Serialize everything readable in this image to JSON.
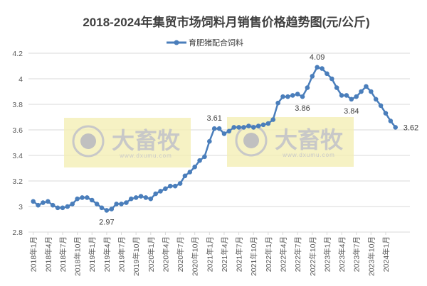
{
  "chart_data": {
    "type": "line",
    "title": "2018-2024年集贸市场饲料月销售价格趋势图(元/公斤)",
    "xlabel": "",
    "ylabel": "",
    "ylim": [
      2.8,
      4.2
    ],
    "yticks": [
      2.8,
      3,
      3.2,
      3.4,
      3.6,
      3.8,
      4,
      4.2
    ],
    "ytick_labels": [
      "2.8",
      "3",
      "3.2",
      "3.4",
      "3.6",
      "3.8",
      "4",
      "4.2"
    ],
    "grid": "horizontal",
    "legend": "top",
    "x": [
      "2018年1月",
      "2018年2月",
      "2018年3月",
      "2018年4月",
      "2018年5月",
      "2018年6月",
      "2018年7月",
      "2018年8月",
      "2018年9月",
      "2018年10月",
      "2018年11月",
      "2018年12月",
      "2019年1月",
      "2019年2月",
      "2019年3月",
      "2019年4月",
      "2019年5月",
      "2019年6月",
      "2019年7月",
      "2019年8月",
      "2019年9月",
      "2019年10月",
      "2019年11月",
      "2019年12月",
      "2020年1月",
      "2020年2月",
      "2020年3月",
      "2020年4月",
      "2020年5月",
      "2020年6月",
      "2020年7月",
      "2020年8月",
      "2020年9月",
      "2020年10月",
      "2020年11月",
      "2020年12月",
      "2021年1月",
      "2021年2月",
      "2021年3月",
      "2021年4月",
      "2021年5月",
      "2021年6月",
      "2021年7月",
      "2021年8月",
      "2021年9月",
      "2021年10月",
      "2021年11月",
      "2021年12月",
      "2022年1月",
      "2022年2月",
      "2022年3月",
      "2022年4月",
      "2022年5月",
      "2022年6月",
      "2022年7月",
      "2022年8月",
      "2022年9月",
      "2022年10月",
      "2022年11月",
      "2022年12月",
      "2023年1月",
      "2023年2月",
      "2023年3月",
      "2023年4月",
      "2023年5月",
      "2023年6月",
      "2023年7月",
      "2023年8月",
      "2023年9月",
      "2023年10月",
      "2023年11月",
      "2023年12月",
      "2024年1月",
      "2024年2月",
      "2024年3月"
    ],
    "tick_every": 3,
    "series": [
      {
        "name": "育肥猪配合饲料",
        "color": "#4a7ebb",
        "values": [
          3.04,
          3.01,
          3.03,
          3.04,
          3.01,
          2.99,
          2.99,
          3.0,
          3.02,
          3.06,
          3.07,
          3.07,
          3.05,
          3.02,
          2.99,
          2.97,
          2.98,
          3.02,
          3.02,
          3.03,
          3.06,
          3.07,
          3.08,
          3.07,
          3.06,
          3.1,
          3.12,
          3.14,
          3.16,
          3.16,
          3.18,
          3.24,
          3.27,
          3.31,
          3.36,
          3.39,
          3.51,
          3.61,
          3.61,
          3.57,
          3.59,
          3.62,
          3.62,
          3.62,
          3.63,
          3.62,
          3.63,
          3.64,
          3.65,
          3.68,
          3.81,
          3.86,
          3.86,
          3.87,
          3.88,
          3.86,
          3.93,
          4.02,
          4.09,
          4.08,
          4.04,
          4.0,
          3.93,
          3.87,
          3.87,
          3.84,
          3.86,
          3.9,
          3.94,
          3.9,
          3.84,
          3.79,
          3.73,
          3.67,
          3.62
        ]
      }
    ],
    "annotations": [
      {
        "index": 15,
        "text": "2.97",
        "position": "below"
      },
      {
        "index": 37,
        "text": "3.61",
        "position": "above"
      },
      {
        "index": 55,
        "text": "3.86",
        "position": "below"
      },
      {
        "index": 58,
        "text": "4.09",
        "position": "above"
      },
      {
        "index": 65,
        "text": "3.84",
        "position": "below"
      },
      {
        "index": 74,
        "text": "3.62",
        "position": "right"
      }
    ]
  },
  "watermark": {
    "brand": "大畜牧",
    "url": "www.dxumu.com"
  }
}
